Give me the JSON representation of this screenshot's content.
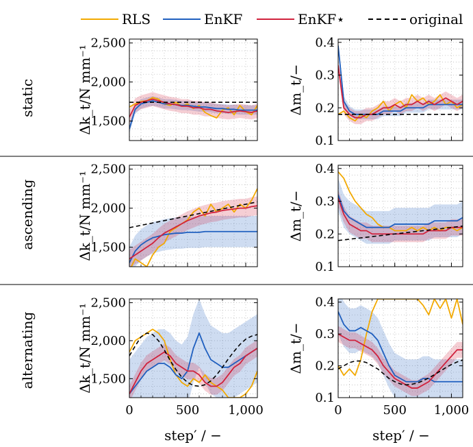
{
  "legend": [
    {
      "label": "RLS",
      "color": "#F2A900",
      "dash": false
    },
    {
      "label": "EnKF",
      "color": "#1F5FBF",
      "dash": false
    },
    {
      "label": "EnKF⋆",
      "color": "#D0213C",
      "dash": false
    },
    {
      "label": "original",
      "color": "#000000",
      "dash": true
    }
  ],
  "rows": [
    "static",
    "ascending",
    "alternating"
  ],
  "ylabel_k": "Δk_t/N mm⁻¹",
  "ylabel_m": "Δm_t/−",
  "xlabel": "step′ / −",
  "chart_data": [
    {
      "type": "line",
      "row": "static",
      "quantity": "k",
      "xlim": [
        0,
        1100
      ],
      "ylim": [
        1250,
        2550
      ],
      "yticks": [
        1500,
        2000,
        2500
      ],
      "yticklabels": [
        "1,500",
        "2,000",
        "2,500"
      ],
      "xticks": [
        0,
        500,
        1000
      ],
      "xticklabels": [
        "0",
        "500",
        "1,000"
      ],
      "show_xticklabels": false,
      "x": [
        0,
        50,
        100,
        150,
        200,
        250,
        300,
        350,
        400,
        450,
        500,
        550,
        600,
        650,
        700,
        750,
        800,
        850,
        900,
        950,
        1000,
        1050,
        1100
      ],
      "series": [
        {
          "name": "RLS",
          "values": [
            1680,
            1720,
            1750,
            1760,
            1800,
            1780,
            1720,
            1700,
            1740,
            1690,
            1720,
            1660,
            1700,
            1610,
            1570,
            1540,
            1640,
            1670,
            1580,
            1700,
            1620,
            1580,
            1700
          ]
        },
        {
          "name": "EnKF",
          "values": [
            1400,
            1650,
            1720,
            1740,
            1760,
            1740,
            1720,
            1720,
            1710,
            1700,
            1700,
            1690,
            1680,
            1680,
            1670,
            1660,
            1660,
            1650,
            1650,
            1640,
            1640,
            1640,
            1640
          ]
        },
        {
          "name": "EnKF⋆",
          "values": [
            1550,
            1700,
            1740,
            1760,
            1780,
            1760,
            1740,
            1720,
            1710,
            1690,
            1690,
            1670,
            1670,
            1650,
            1650,
            1630,
            1620,
            1610,
            1620,
            1630,
            1620,
            1610,
            1630
          ]
        },
        {
          "name": "original",
          "values": [
            1740,
            1740,
            1740,
            1740,
            1740,
            1740,
            1740,
            1740,
            1740,
            1740,
            1740,
            1740,
            1740,
            1740,
            1740,
            1740,
            1740,
            1740,
            1740,
            1740,
            1740,
            1740,
            1740
          ]
        }
      ],
      "band": [
        {
          "series": "EnKF",
          "halfwidth": 60
        },
        {
          "series": "EnKF⋆",
          "halfwidth": 90
        }
      ]
    },
    {
      "type": "line",
      "row": "static",
      "quantity": "m",
      "xlim": [
        0,
        1100
      ],
      "ylim": [
        0.1,
        0.41
      ],
      "yticks": [
        0.1,
        0.2,
        0.3,
        0.4
      ],
      "yticklabels": [
        "0.1",
        "0.2",
        "0.3",
        "0.4"
      ],
      "xticks": [
        0,
        500,
        1000
      ],
      "xticklabels": [
        "0",
        "500",
        "1,000"
      ],
      "show_xticklabels": false,
      "x": [
        0,
        50,
        100,
        150,
        200,
        250,
        300,
        350,
        400,
        450,
        500,
        550,
        600,
        650,
        700,
        750,
        800,
        850,
        900,
        950,
        1000,
        1050,
        1100
      ],
      "series": [
        {
          "name": "RLS",
          "values": [
            0.18,
            0.19,
            0.17,
            0.16,
            0.18,
            0.17,
            0.19,
            0.2,
            0.22,
            0.19,
            0.21,
            0.22,
            0.2,
            0.24,
            0.22,
            0.23,
            0.21,
            0.22,
            0.24,
            0.21,
            0.22,
            0.2,
            0.21
          ]
        },
        {
          "name": "EnKF",
          "values": [
            0.39,
            0.22,
            0.19,
            0.18,
            0.18,
            0.18,
            0.18,
            0.18,
            0.19,
            0.19,
            0.19,
            0.19,
            0.2,
            0.2,
            0.2,
            0.2,
            0.21,
            0.21,
            0.21,
            0.21,
            0.21,
            0.21,
            0.21
          ]
        },
        {
          "name": "EnKF⋆",
          "values": [
            0.33,
            0.2,
            0.18,
            0.17,
            0.17,
            0.18,
            0.18,
            0.19,
            0.2,
            0.2,
            0.21,
            0.2,
            0.21,
            0.21,
            0.22,
            0.21,
            0.22,
            0.21,
            0.22,
            0.23,
            0.22,
            0.21,
            0.22
          ]
        },
        {
          "name": "original",
          "values": [
            0.18,
            0.18,
            0.18,
            0.18,
            0.18,
            0.18,
            0.18,
            0.18,
            0.18,
            0.18,
            0.18,
            0.18,
            0.18,
            0.18,
            0.18,
            0.18,
            0.18,
            0.18,
            0.18,
            0.18,
            0.18,
            0.18,
            0.18
          ]
        }
      ],
      "band": [
        {
          "series": "EnKF",
          "halfwidth": 0.015
        },
        {
          "series": "EnKF⋆",
          "halfwidth": 0.02
        }
      ]
    },
    {
      "type": "line",
      "row": "ascending",
      "quantity": "k",
      "xlim": [
        0,
        1100
      ],
      "ylim": [
        1250,
        2550
      ],
      "yticks": [
        1500,
        2000,
        2500
      ],
      "yticklabels": [
        "1,500",
        "2,000",
        "2,500"
      ],
      "xticks": [
        0,
        500,
        1000
      ],
      "xticklabels": [
        "0",
        "500",
        "1,000"
      ],
      "show_xticklabels": false,
      "x": [
        0,
        50,
        100,
        150,
        200,
        250,
        300,
        350,
        400,
        450,
        500,
        550,
        600,
        650,
        700,
        750,
        800,
        850,
        900,
        950,
        1000,
        1050,
        1100
      ],
      "series": [
        {
          "name": "RLS",
          "values": [
            1200,
            1350,
            1300,
            1250,
            1400,
            1500,
            1550,
            1700,
            1750,
            1800,
            1850,
            1950,
            2000,
            1900,
            2050,
            1950,
            2000,
            2050,
            1950,
            2050,
            2000,
            2100,
            2250
          ]
        },
        {
          "name": "EnKF",
          "values": [
            1300,
            1450,
            1530,
            1580,
            1620,
            1640,
            1660,
            1670,
            1680,
            1680,
            1690,
            1690,
            1690,
            1700,
            1700,
            1700,
            1700,
            1700,
            1700,
            1700,
            1700,
            1700,
            1700
          ]
        },
        {
          "name": "EnKF⋆",
          "values": [
            1350,
            1400,
            1450,
            1500,
            1550,
            1620,
            1680,
            1720,
            1760,
            1800,
            1840,
            1870,
            1900,
            1920,
            1940,
            1950,
            1970,
            1980,
            1990,
            2000,
            2000,
            2020,
            2030
          ]
        },
        {
          "name": "original",
          "values": [
            1750,
            1765,
            1780,
            1795,
            1810,
            1825,
            1840,
            1855,
            1870,
            1885,
            1900,
            1915,
            1930,
            1945,
            1960,
            1975,
            1990,
            2005,
            2020,
            2035,
            2050,
            2065,
            2080
          ]
        }
      ],
      "band": [
        {
          "series": "EnKF",
          "halfwidth": 200
        },
        {
          "series": "EnKF⋆",
          "halfwidth": 120
        }
      ]
    },
    {
      "type": "line",
      "row": "ascending",
      "quantity": "m",
      "xlim": [
        0,
        1100
      ],
      "ylim": [
        0.1,
        0.41
      ],
      "yticks": [
        0.1,
        0.2,
        0.3,
        0.4
      ],
      "yticklabels": [
        "0.1",
        "0.2",
        "0.3",
        "0.4"
      ],
      "xticks": [
        0,
        500,
        1000
      ],
      "xticklabels": [
        "0",
        "500",
        "1,000"
      ],
      "show_xticklabels": false,
      "x": [
        0,
        50,
        100,
        150,
        200,
        250,
        300,
        350,
        400,
        450,
        500,
        550,
        600,
        650,
        700,
        750,
        800,
        850,
        900,
        950,
        1000,
        1050,
        1100
      ],
      "series": [
        {
          "name": "RLS",
          "values": [
            0.39,
            0.37,
            0.33,
            0.3,
            0.28,
            0.26,
            0.25,
            0.23,
            0.22,
            0.22,
            0.21,
            0.21,
            0.21,
            0.22,
            0.21,
            0.22,
            0.21,
            0.22,
            0.21,
            0.22,
            0.22,
            0.21,
            0.22
          ]
        },
        {
          "name": "EnKF",
          "values": [
            0.32,
            0.27,
            0.25,
            0.24,
            0.23,
            0.22,
            0.22,
            0.22,
            0.22,
            0.22,
            0.23,
            0.23,
            0.23,
            0.23,
            0.23,
            0.23,
            0.23,
            0.24,
            0.24,
            0.24,
            0.24,
            0.24,
            0.25
          ]
        },
        {
          "name": "EnKF⋆",
          "values": [
            0.31,
            0.26,
            0.23,
            0.22,
            0.21,
            0.21,
            0.2,
            0.2,
            0.2,
            0.2,
            0.2,
            0.2,
            0.2,
            0.2,
            0.2,
            0.2,
            0.21,
            0.21,
            0.21,
            0.21,
            0.22,
            0.22,
            0.22
          ]
        },
        {
          "name": "original",
          "values": [
            0.18,
            0.182,
            0.184,
            0.186,
            0.188,
            0.19,
            0.192,
            0.194,
            0.196,
            0.198,
            0.2,
            0.202,
            0.204,
            0.206,
            0.208,
            0.21,
            0.212,
            0.214,
            0.216,
            0.218,
            0.22,
            0.222,
            0.224
          ]
        }
      ],
      "band": [
        {
          "series": "EnKF",
          "halfwidth": 0.05
        },
        {
          "series": "EnKF⋆",
          "halfwidth": 0.025
        }
      ]
    },
    {
      "type": "line",
      "row": "alternating",
      "quantity": "k",
      "xlim": [
        0,
        1100
      ],
      "ylim": [
        1250,
        2550
      ],
      "yticks": [
        1500,
        2000,
        2500
      ],
      "yticklabels": [
        "1,500",
        "2,000",
        "2,500"
      ],
      "xticks": [
        0,
        500,
        1000
      ],
      "xticklabels": [
        "0",
        "500",
        "1,000"
      ],
      "show_xticklabels": true,
      "x": [
        0,
        50,
        100,
        150,
        200,
        250,
        300,
        350,
        400,
        450,
        500,
        550,
        600,
        650,
        700,
        750,
        800,
        850,
        900,
        950,
        1000,
        1050,
        1100
      ],
      "series": [
        {
          "name": "RLS",
          "values": [
            1850,
            2000,
            2050,
            2100,
            2150,
            2100,
            2000,
            1750,
            1550,
            1450,
            1400,
            1500,
            1450,
            1550,
            1450,
            1400,
            1350,
            1250,
            1250,
            1250,
            1300,
            1400,
            1600
          ]
        },
        {
          "name": "EnKF",
          "values": [
            1300,
            1400,
            1500,
            1600,
            1650,
            1700,
            1700,
            1650,
            1550,
            1500,
            1600,
            1900,
            2100,
            1900,
            1750,
            1700,
            1650,
            1650,
            1700,
            1750,
            1800,
            1850,
            1900
          ]
        },
        {
          "name": "EnKF⋆",
          "values": [
            1300,
            1450,
            1600,
            1700,
            1750,
            1800,
            1850,
            1800,
            1700,
            1650,
            1600,
            1600,
            1550,
            1450,
            1400,
            1400,
            1450,
            1550,
            1650,
            1700,
            1800,
            1850,
            1900
          ]
        },
        {
          "name": "original",
          "values": [
            1800,
            1930,
            2050,
            2100,
            2080,
            2000,
            1880,
            1740,
            1620,
            1520,
            1450,
            1410,
            1400,
            1420,
            1470,
            1550,
            1650,
            1760,
            1860,
            1950,
            2020,
            2060,
            2080
          ]
        }
      ],
      "band": [
        {
          "series": "EnKF",
          "halfwidth": 450
        },
        {
          "series": "EnKF⋆",
          "halfwidth": 110
        }
      ]
    },
    {
      "type": "line",
      "row": "alternating",
      "quantity": "m",
      "xlim": [
        0,
        1100
      ],
      "ylim": [
        0.1,
        0.41
      ],
      "yticks": [
        0.1,
        0.2,
        0.3,
        0.4
      ],
      "yticklabels": [
        "0.1",
        "0.2",
        "0.3",
        "0.4"
      ],
      "xticks": [
        0,
        500,
        1000
      ],
      "xticklabels": [
        "0",
        "500",
        "1,000"
      ],
      "show_xticklabels": true,
      "x": [
        0,
        50,
        100,
        150,
        200,
        250,
        300,
        350,
        400,
        450,
        500,
        550,
        600,
        650,
        700,
        750,
        800,
        850,
        900,
        950,
        1000,
        1050,
        1100
      ],
      "series": [
        {
          "name": "RLS",
          "values": [
            0.2,
            0.17,
            0.19,
            0.17,
            0.22,
            0.3,
            0.37,
            0.41,
            0.41,
            0.41,
            0.41,
            0.41,
            0.41,
            0.41,
            0.41,
            0.39,
            0.36,
            0.41,
            0.38,
            0.41,
            0.35,
            0.41,
            0.33
          ]
        },
        {
          "name": "EnKF",
          "values": [
            0.37,
            0.33,
            0.31,
            0.31,
            0.32,
            0.31,
            0.3,
            0.28,
            0.24,
            0.2,
            0.17,
            0.16,
            0.15,
            0.15,
            0.15,
            0.16,
            0.16,
            0.15,
            0.15,
            0.15,
            0.15,
            0.15,
            0.15
          ]
        },
        {
          "name": "EnKF⋆",
          "values": [
            0.3,
            0.29,
            0.28,
            0.28,
            0.27,
            0.26,
            0.25,
            0.23,
            0.2,
            0.18,
            0.16,
            0.15,
            0.14,
            0.13,
            0.13,
            0.14,
            0.15,
            0.17,
            0.19,
            0.21,
            0.23,
            0.25,
            0.25
          ]
        },
        {
          "name": "original",
          "values": [
            0.19,
            0.2,
            0.21,
            0.215,
            0.215,
            0.21,
            0.2,
            0.19,
            0.175,
            0.16,
            0.15,
            0.143,
            0.14,
            0.142,
            0.146,
            0.153,
            0.162,
            0.172,
            0.183,
            0.194,
            0.204,
            0.212,
            0.218
          ]
        }
      ],
      "band": [
        {
          "series": "EnKF",
          "halfwidth": 0.07
        },
        {
          "series": "EnKF⋆",
          "halfwidth": 0.025
        }
      ]
    }
  ]
}
